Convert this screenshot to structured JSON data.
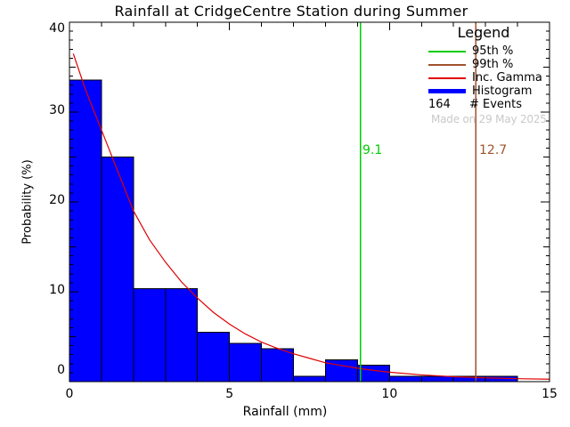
{
  "title": "Rainfall at CridgeCentre Station during Summer",
  "watermark": "Made on 29 May 2025",
  "annotations": {
    "p95_label": "9.1",
    "p99_label": "12.7"
  },
  "legend": {
    "title": "Legend",
    "items": [
      {
        "label": "95th %",
        "color": "#00cc00",
        "thickness": 2
      },
      {
        "label": "99th %",
        "color": "#a0522d",
        "thickness": 2
      },
      {
        "label": "Inc. Gamma",
        "color": "#e00000",
        "thickness": 2
      },
      {
        "label": "Histogram",
        "color": "#0000ff",
        "thickness": 5
      }
    ],
    "events_count": "164",
    "events_label": "# Events"
  },
  "colors": {
    "background": "#ffffff",
    "axis": "#000000",
    "text": "#000000",
    "histogram_fill": "#0000ff",
    "histogram_outline": "#000000",
    "gamma_curve": "#e00000",
    "p95_line": "#00cc00",
    "p99_line": "#a0522d",
    "watermark": "#c9c9c9"
  },
  "chart_data": {
    "type": "bar",
    "title": "Rainfall at CridgeCentre Station during Summer",
    "xlabel": "Rainfall (mm)",
    "ylabel": "Probability (%)",
    "xlim": [
      0,
      15
    ],
    "ylim": [
      0,
      40
    ],
    "x_major_ticks": [
      0,
      5,
      10,
      15
    ],
    "y_major_ticks": [
      0,
      10,
      20,
      30,
      40
    ],
    "x_minor_step": 1,
    "y_minor_step": 1,
    "grid": false,
    "legend_position": "top-right",
    "n_events": 164,
    "bin_width_mm": 1,
    "bins_start_mm": [
      0,
      1,
      2,
      3,
      4,
      5,
      6,
      7,
      8,
      9,
      10,
      11,
      12,
      13,
      14
    ],
    "histogram_percent": [
      33.54,
      25.0,
      10.37,
      10.37,
      5.49,
      4.27,
      3.66,
      0.61,
      2.44,
      1.83,
      0.61,
      0.61,
      0.61,
      0.61,
      0
    ],
    "histogram_counts": [
      55,
      41,
      17,
      17,
      9,
      7,
      6,
      1,
      4,
      3,
      1,
      1,
      1,
      1,
      0
    ],
    "percentile_95_mm": 9.1,
    "percentile_99_mm": 12.7,
    "gamma_curve": {
      "x": [
        0.12,
        0.5,
        1,
        1.5,
        2,
        2.5,
        3,
        3.5,
        4,
        4.5,
        5,
        5.5,
        6,
        6.5,
        7,
        7.5,
        8,
        8.5,
        9,
        9.5,
        10,
        11,
        12,
        13,
        14,
        15
      ],
      "y": [
        36.5,
        32.5,
        28.0,
        23.5,
        19.0,
        15.8,
        13.3,
        11.1,
        9.3,
        7.7,
        6.4,
        5.3,
        4.4,
        3.7,
        3.1,
        2.6,
        2.1,
        1.8,
        1.5,
        1.25,
        1.05,
        0.75,
        0.55,
        0.42,
        0.33,
        0.27
      ]
    }
  }
}
